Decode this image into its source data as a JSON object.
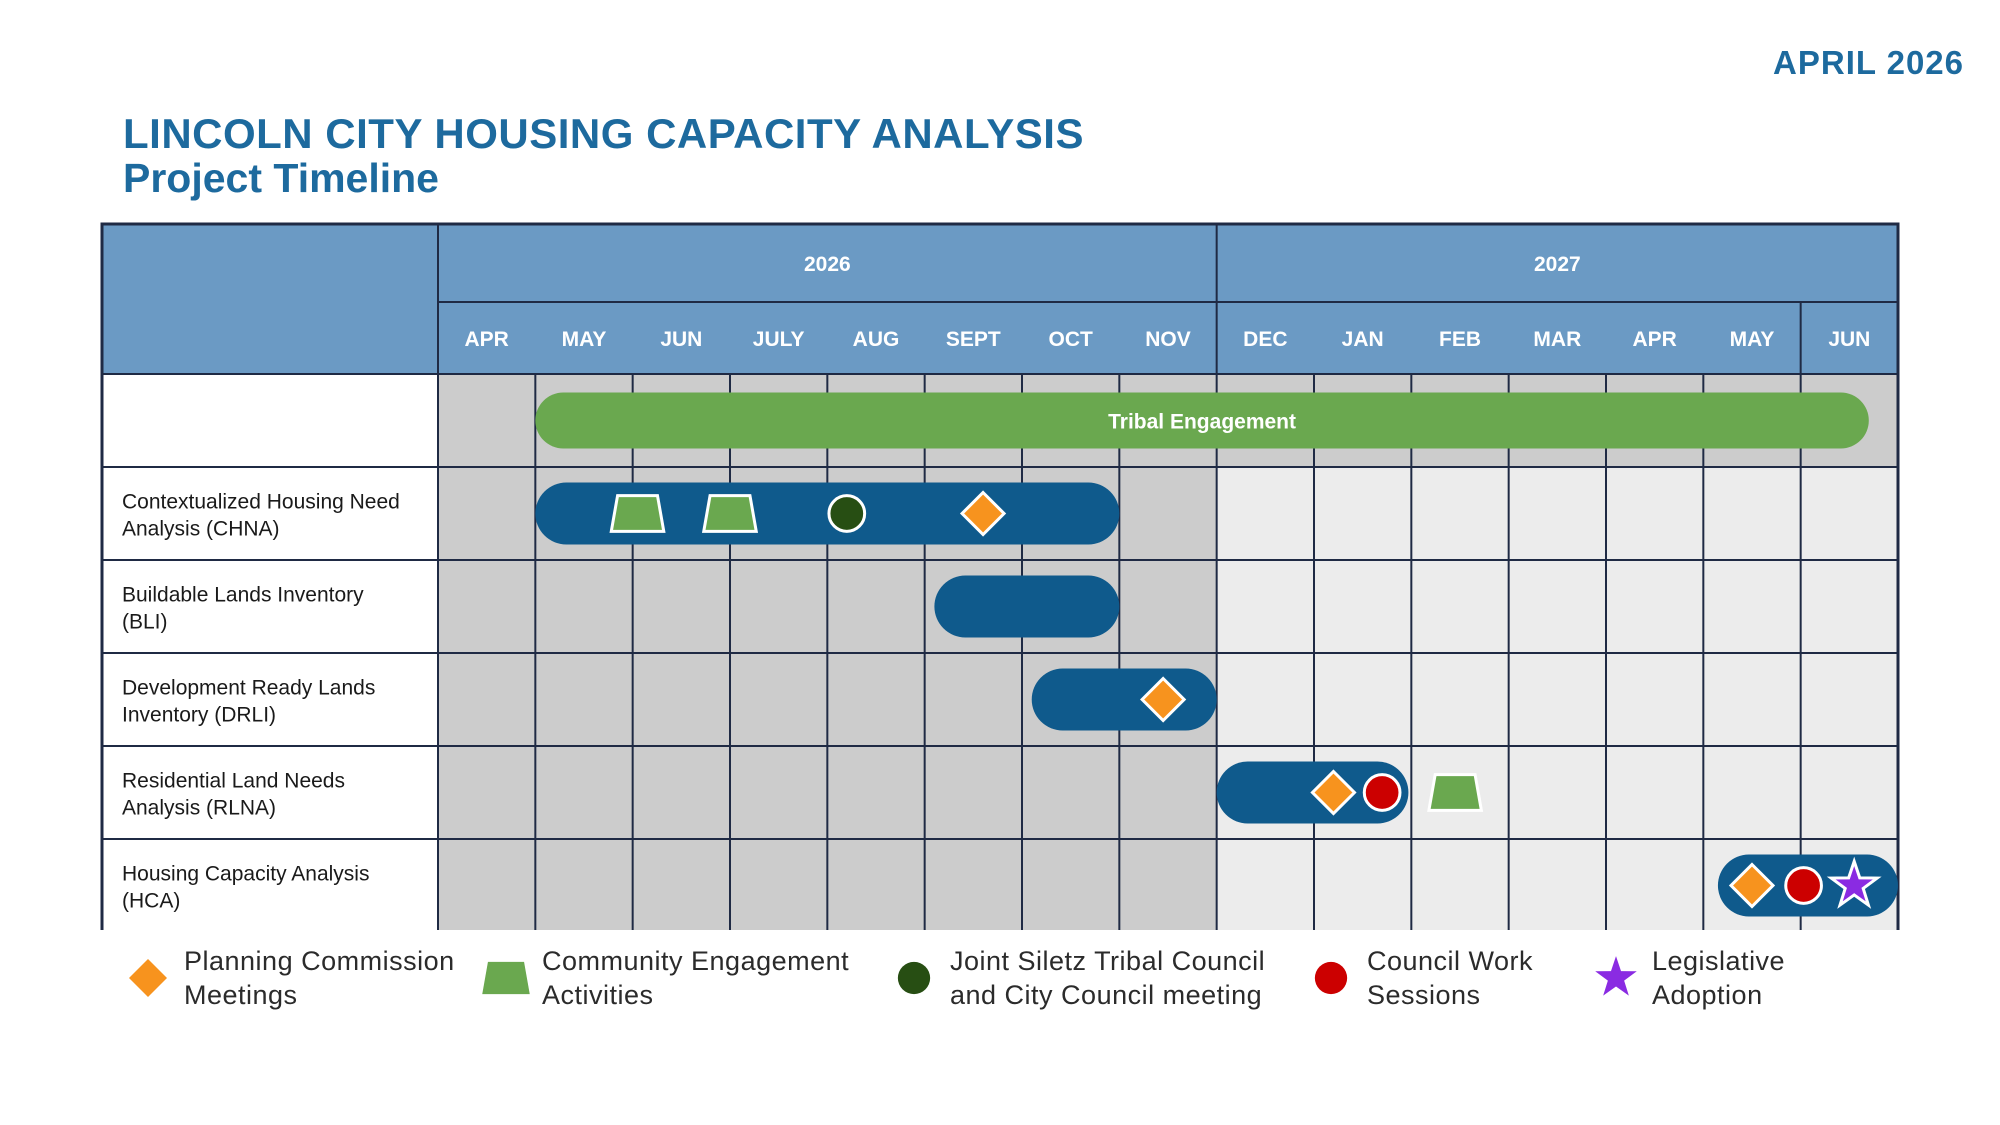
{
  "header": {
    "date": "APRIL 2026",
    "title": "LINCOLN CITY HOUSING CAPACITY ANALYSIS",
    "subtitle": "Project Timeline"
  },
  "timeline": {
    "years": [
      "2026",
      "2027"
    ],
    "months": [
      "APR",
      "MAY",
      "JUN",
      "JULY",
      "AUG",
      "SEPT",
      "OCT",
      "NOV",
      "DEC",
      "JAN",
      "FEB",
      "MAR",
      "APR",
      "MAY",
      "JUN"
    ],
    "rows": [
      {
        "label": ""
      },
      {
        "label": "Contextualized Housing Need\nAnalysis (CHNA)"
      },
      {
        "label": "Buildable Lands Inventory\n(BLI)"
      },
      {
        "label": "Development Ready Lands\nInventory (DRLI)"
      },
      {
        "label": "Residential Land Needs\nAnalysis (RLNA)"
      },
      {
        "label": "Housing Capacity Analysis\n(HCA)"
      }
    ],
    "bars": [
      {
        "row": 0,
        "start": 1,
        "end": 14.7,
        "color": "#6aa84f",
        "label": "Tribal Engagement"
      },
      {
        "row": 1,
        "start": 1,
        "end": 7,
        "color": "#0f5a8c",
        "label": ""
      },
      {
        "row": 2,
        "start": 5.1,
        "end": 7,
        "color": "#0f5a8c",
        "label": ""
      },
      {
        "row": 3,
        "start": 6.1,
        "end": 8,
        "color": "#0f5a8c",
        "label": ""
      },
      {
        "row": 4,
        "start": 8,
        "end": 9.97,
        "color": "#0f5a8c",
        "label": ""
      },
      {
        "row": 5,
        "start": 13.15,
        "end": 15,
        "color": "#0f5a8c",
        "label": ""
      }
    ],
    "markers": [
      {
        "row": 1,
        "month": 2.05,
        "type": "trapezoid"
      },
      {
        "row": 1,
        "month": 3.0,
        "type": "trapezoid"
      },
      {
        "row": 1,
        "month": 4.2,
        "type": "circle-dark"
      },
      {
        "row": 1,
        "month": 5.6,
        "type": "diamond"
      },
      {
        "row": 3,
        "month": 7.45,
        "type": "diamond"
      },
      {
        "row": 4,
        "month": 9.2,
        "type": "diamond"
      },
      {
        "row": 4,
        "month": 9.7,
        "type": "circle-red"
      },
      {
        "row": 4,
        "month": 10.45,
        "type": "trapezoid"
      },
      {
        "row": 5,
        "month": 13.5,
        "type": "diamond"
      },
      {
        "row": 5,
        "month": 14.03,
        "type": "circle-red"
      },
      {
        "row": 5,
        "month": 14.55,
        "type": "star"
      }
    ]
  },
  "legend": [
    {
      "icon": "diamond",
      "label": "Planning Commission\nMeetings"
    },
    {
      "icon": "trapezoid",
      "label": "Community Engagement\nActivities"
    },
    {
      "icon": "circle-dark",
      "label": "Joint Siletz Tribal Council\nand City Council meeting"
    },
    {
      "icon": "circle-red",
      "label": "Council Work\nSessions"
    },
    {
      "icon": "star",
      "label": "Legislative\nAdoption"
    }
  ],
  "colors": {
    "header_blue": "#6b9ac4",
    "border": "#1f2a44",
    "bar_blue": "#0f5a8c",
    "bar_green": "#6aa84f",
    "cell_dark": "#cccccc",
    "cell_light": "#ececec",
    "diamond": "#f7931e",
    "trapezoid": "#6aa84f",
    "circle_dark": "#274e13",
    "circle_red": "#cc0000",
    "star": "#8a2be2",
    "title_blue": "#1d6a9e"
  }
}
